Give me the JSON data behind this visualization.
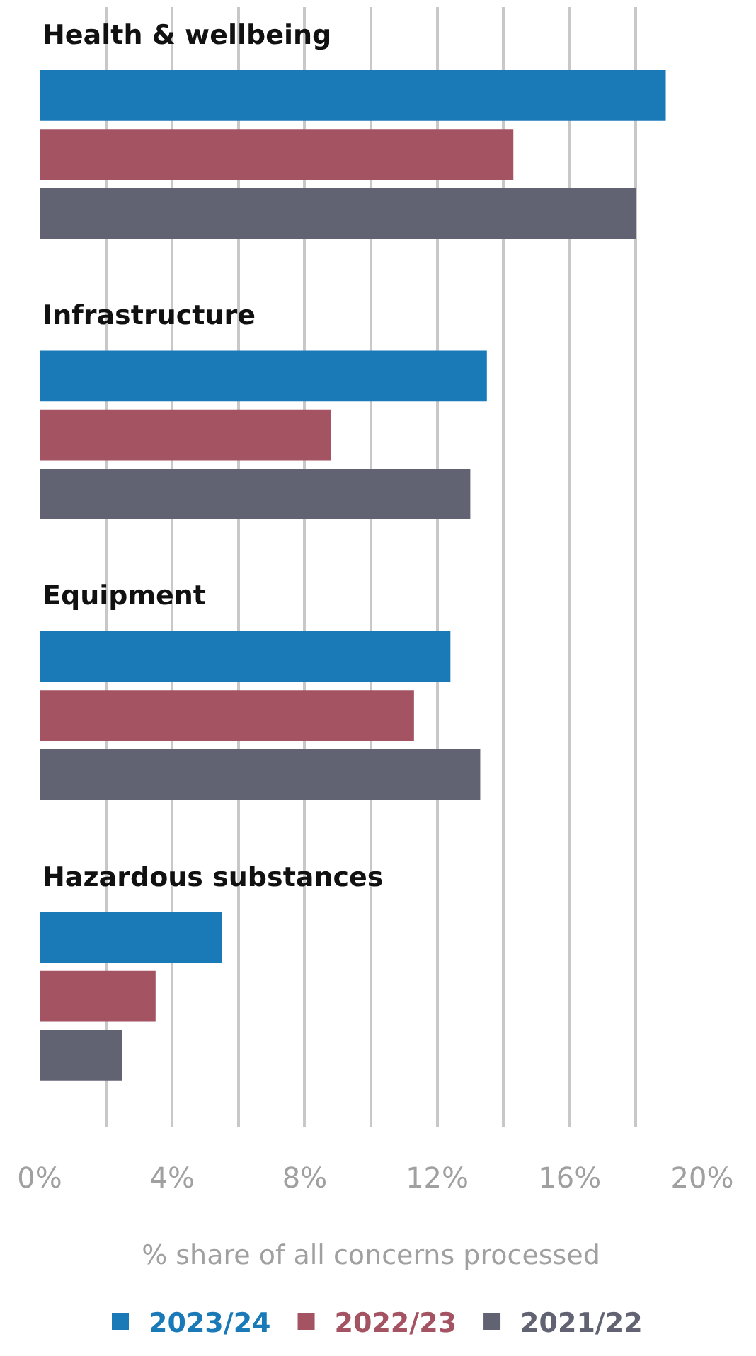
{
  "chart_data": {
    "type": "bar",
    "orientation": "horizontal",
    "categories": [
      "Health & wellbeing",
      "Infrastructure",
      "Equipment",
      "Hazardous substances"
    ],
    "series": [
      {
        "name": "2023/24",
        "color": "#1a7ab8",
        "values": [
          18.9,
          13.5,
          12.4,
          5.5
        ]
      },
      {
        "name": "2022/23",
        "color": "#a35361",
        "values": [
          14.3,
          8.8,
          11.3,
          3.5
        ]
      },
      {
        "name": "2021/22",
        "color": "#626372",
        "values": [
          18.0,
          13.0,
          13.3,
          2.5
        ]
      }
    ],
    "xlabel": "% share of all concerns processed",
    "xlim": [
      0,
      20
    ],
    "xticks": [
      {
        "value": 0,
        "label": "0%"
      },
      {
        "value": 2,
        "label": null
      },
      {
        "value": 4,
        "label": "4%"
      },
      {
        "value": 6,
        "label": null
      },
      {
        "value": 8,
        "label": "8%"
      },
      {
        "value": 10,
        "label": null
      },
      {
        "value": 12,
        "label": "12%"
      },
      {
        "value": 14,
        "label": null
      },
      {
        "value": 16,
        "label": "16%"
      },
      {
        "value": 18,
        "label": null
      },
      {
        "value": 20,
        "label": "20%"
      }
    ],
    "grid": "x",
    "legend": "bottom"
  }
}
